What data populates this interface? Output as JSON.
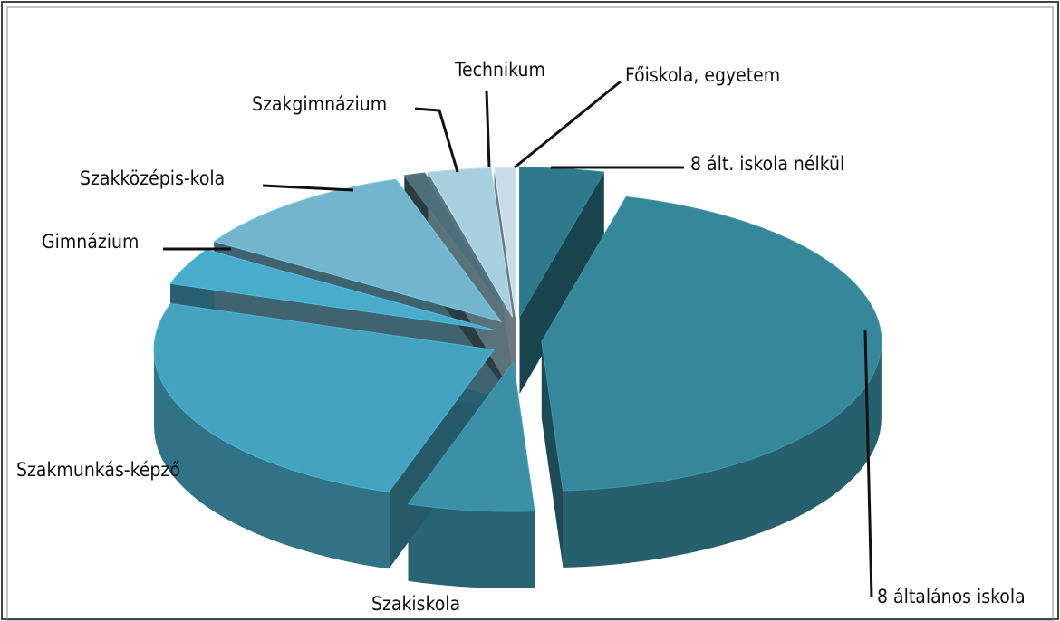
{
  "chart_data": {
    "type": "pie",
    "categories": [
      "8 ált. iskola nélkül",
      "8 általános iskola",
      "Szakiskola",
      "Szakmunkás-képző",
      "Gimnázium",
      "Szakközépis-kola",
      "Szakgimnázium",
      "Technikum",
      "Főiskola, egyetem"
    ],
    "values": [
      4,
      45,
      6,
      25,
      4,
      11,
      1,
      3,
      1
    ],
    "colors": [
      "#2e7a8c",
      "#37879b",
      "#3b8fa6",
      "#46a3bf",
      "#4aaccc",
      "#72b5cc",
      "#4e6f7a",
      "#a8cfdd",
      "#c8dde6"
    ]
  }
}
